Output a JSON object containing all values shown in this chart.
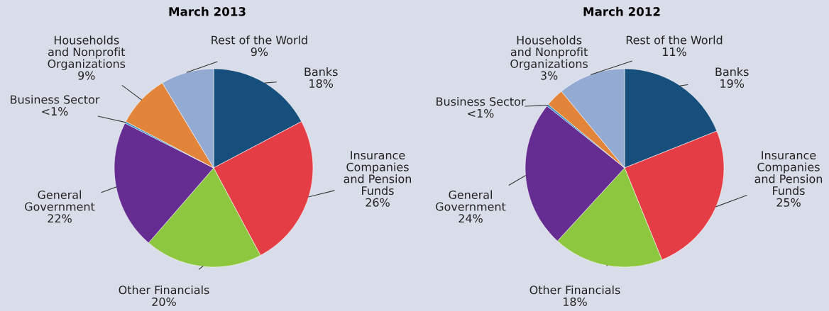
{
  "chart_data": [
    {
      "type": "pie",
      "title": "March 2013",
      "categories": [
        "Banks",
        "Insurance\nCompanies\nand Pension\nFunds",
        "Other Financials",
        "General\nGovernment",
        "Business Sector",
        "Households\nand Nonprofit\nOrganizations",
        "Rest of the World"
      ],
      "values": [
        18,
        26,
        20,
        22,
        0.3,
        9,
        9
      ],
      "value_labels": [
        "18%",
        "26%",
        "20%",
        "22%",
        "<1%",
        "9%",
        "9%"
      ],
      "colors": [
        "#174f7c",
        "#e53d45",
        "#8dc63f",
        "#652d91",
        "#2d8fc4",
        "#e2853a",
        "#93aad3"
      ]
    },
    {
      "type": "pie",
      "title": "March 2012",
      "categories": [
        "Banks",
        "Insurance\nCompanies\nand Pension\nFunds",
        "Other Financials",
        "General\nGovernment",
        "Business Sector",
        "Households\nand Nonprofit\nOrganizations",
        "Rest of the World"
      ],
      "values": [
        19,
        25,
        18,
        24,
        0.3,
        3,
        11
      ],
      "value_labels": [
        "19%",
        "25%",
        "18%",
        "24%",
        "<1%",
        "3%",
        "11%"
      ],
      "colors": [
        "#174f7c",
        "#e53d45",
        "#8dc63f",
        "#652d91",
        "#2d8fc4",
        "#e2853a",
        "#93aad3"
      ]
    }
  ]
}
